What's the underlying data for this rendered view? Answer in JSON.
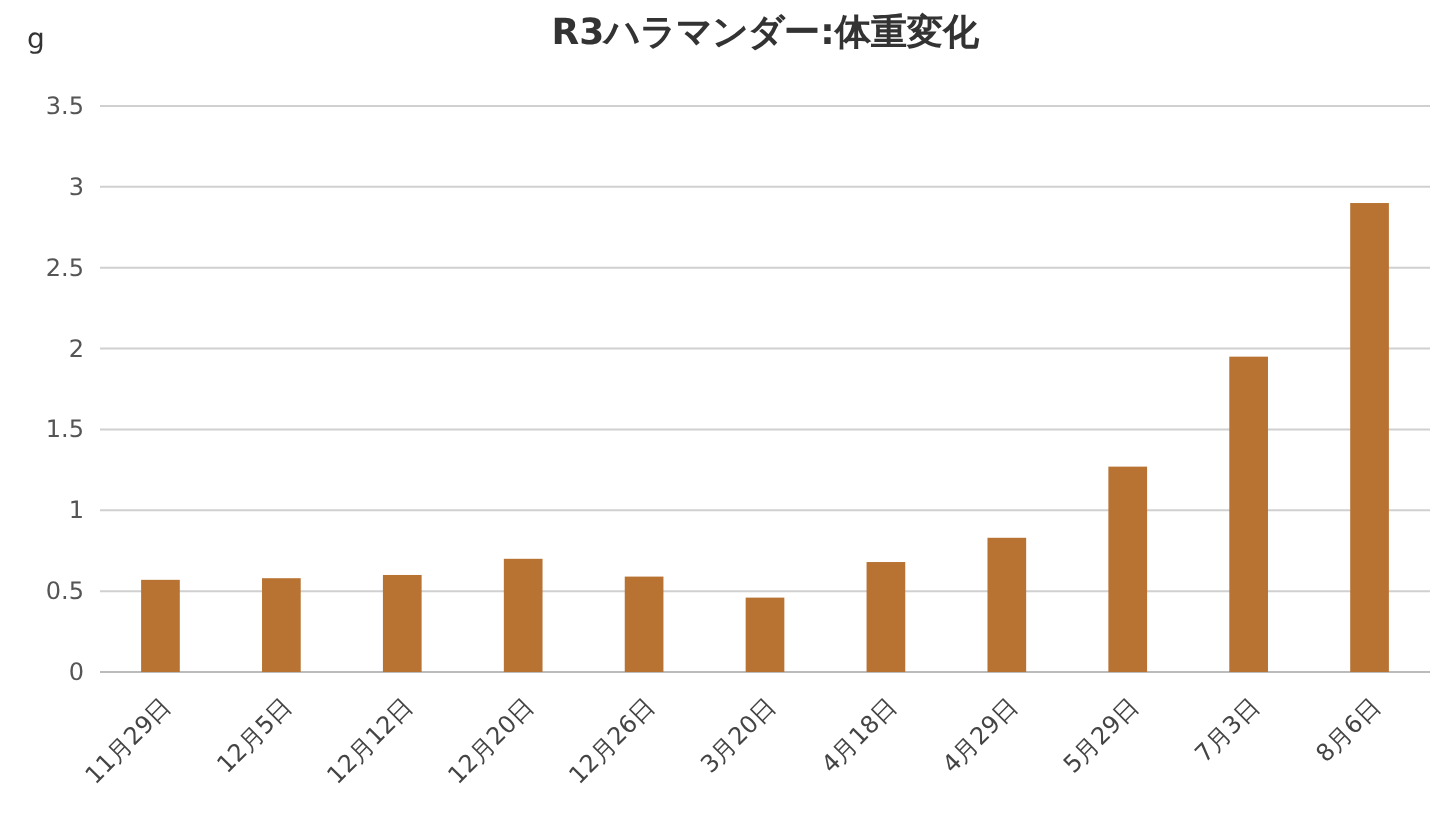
{
  "chart_data": {
    "type": "bar",
    "title": "R3ハラマンダー:体重変化",
    "ylabel": "g",
    "categories": [
      "11月29日",
      "12月5日",
      "12月12日",
      "12月20日",
      "12月26日",
      "3月20日",
      "4月18日",
      "4月29日",
      "5月29日",
      "7月3日",
      "8月6日"
    ],
    "values": [
      0.57,
      0.58,
      0.6,
      0.7,
      0.59,
      0.46,
      0.68,
      0.83,
      1.27,
      1.95,
      2.9
    ],
    "color": "#b87333",
    "ylim": [
      0,
      3.5
    ],
    "yticks": [
      0,
      0.5,
      1,
      1.5,
      2,
      2.5,
      3,
      3.5
    ],
    "grid": "y"
  }
}
